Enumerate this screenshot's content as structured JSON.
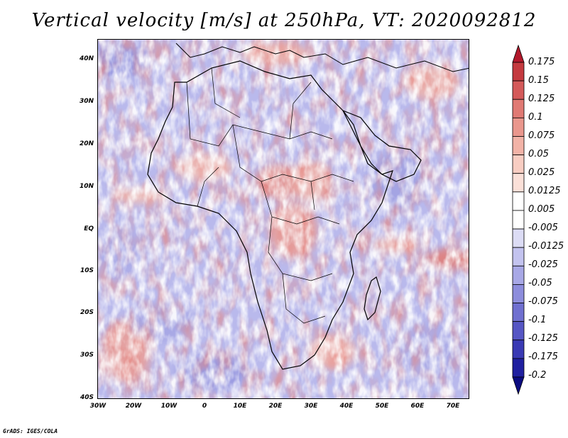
{
  "title": "Vertical velocity [m/s] at 250hPa, VT: 2020092812",
  "credit": "GrADS: IGES/COLA",
  "map": {
    "lat_ticks": [
      "40N",
      "30N",
      "20N",
      "10N",
      "EQ",
      "10S",
      "20S",
      "30S",
      "40S"
    ],
    "lon_ticks": [
      "30W",
      "20W",
      "10W",
      "0",
      "10E",
      "20E",
      "30E",
      "40E",
      "50E",
      "60E",
      "70E"
    ],
    "lat_range": [
      -40,
      44
    ],
    "lon_range": [
      -30,
      75
    ]
  },
  "colorbar": {
    "labels": [
      "0.175",
      "0.15",
      "0.125",
      "0.1",
      "0.075",
      "0.05",
      "0.025",
      "0.0125",
      "0.005",
      "-0.005",
      "-0.0125",
      "-0.025",
      "-0.05",
      "-0.075",
      "-0.1",
      "-0.125",
      "-0.175",
      "-0.2"
    ],
    "colors": [
      "#b2182b",
      "#c43a3f",
      "#d45a5a",
      "#e07a74",
      "#ea978d",
      "#f2b3a7",
      "#f8cdc2",
      "#fbe0d8",
      "#ffffff",
      "#ffffff",
      "#dcdcf5",
      "#c3c3ef",
      "#a8a8e6",
      "#8d8ddc",
      "#7070d0",
      "#5656c4",
      "#3a3ab4",
      "#2020a0",
      "#0b0b80"
    ]
  }
}
